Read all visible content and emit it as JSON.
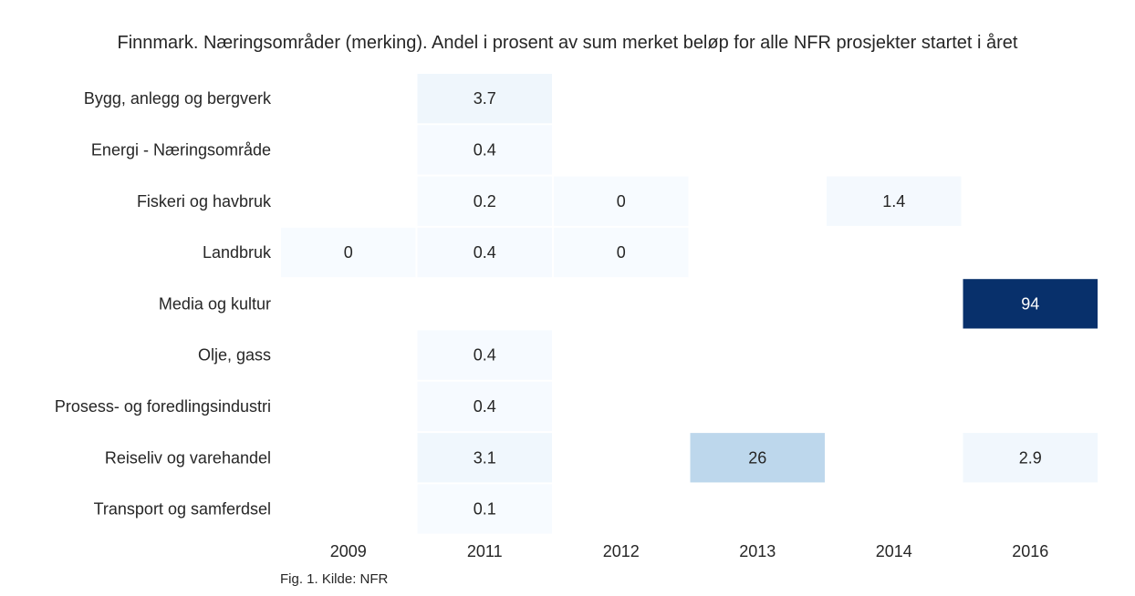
{
  "chart_data": {
    "type": "heatmap",
    "title": "Finnmark. Næringsområder (merking). Andel i prosent av sum merket beløp for alle NFR prosjekter startet i året",
    "xlabel": "",
    "ylabel": "",
    "columns": [
      "2009",
      "2011",
      "2012",
      "2013",
      "2014",
      "2016"
    ],
    "rows": [
      "Bygg, anlegg og bergverk",
      "Energi - Næringsområde",
      "Fiskeri og havbruk",
      "Landbruk",
      "Media og kultur",
      "Olje, gass",
      "Prosess- og foredlingsindustri",
      "Reiseliv og varehandel",
      "Transport og samferdsel"
    ],
    "values": [
      [
        null,
        3.7,
        null,
        null,
        null,
        null
      ],
      [
        null,
        0.4,
        null,
        null,
        null,
        null
      ],
      [
        null,
        0.2,
        0,
        null,
        1.4,
        null
      ],
      [
        0,
        0.4,
        0,
        null,
        null,
        null
      ],
      [
        null,
        null,
        null,
        null,
        null,
        94
      ],
      [
        null,
        0.4,
        null,
        null,
        null,
        null
      ],
      [
        null,
        0.4,
        null,
        null,
        null,
        null
      ],
      [
        null,
        3.1,
        null,
        26,
        null,
        2.9
      ],
      [
        null,
        0.1,
        null,
        null,
        null,
        null
      ]
    ],
    "value_labels": [
      [
        null,
        "3.7",
        null,
        null,
        null,
        null
      ],
      [
        null,
        "0.4",
        null,
        null,
        null,
        null
      ],
      [
        null,
        "0.2",
        "0",
        null,
        "1.4",
        null
      ],
      [
        "0",
        "0.4",
        "0",
        null,
        null,
        null
      ],
      [
        null,
        null,
        null,
        null,
        null,
        "94"
      ],
      [
        null,
        "0.4",
        null,
        null,
        null,
        null
      ],
      [
        null,
        "0.4",
        null,
        null,
        null,
        null
      ],
      [
        null,
        "3.1",
        null,
        "26",
        null,
        "2.9"
      ],
      [
        null,
        "0.1",
        null,
        null,
        null,
        null
      ]
    ],
    "color_scale": {
      "name": "Blues",
      "range": [
        0,
        94
      ],
      "low_color": "#f7fbff",
      "high_color": "#08306b"
    },
    "grid": false,
    "legend": "none"
  },
  "caption": "Fig. 1. Kilde: NFR"
}
